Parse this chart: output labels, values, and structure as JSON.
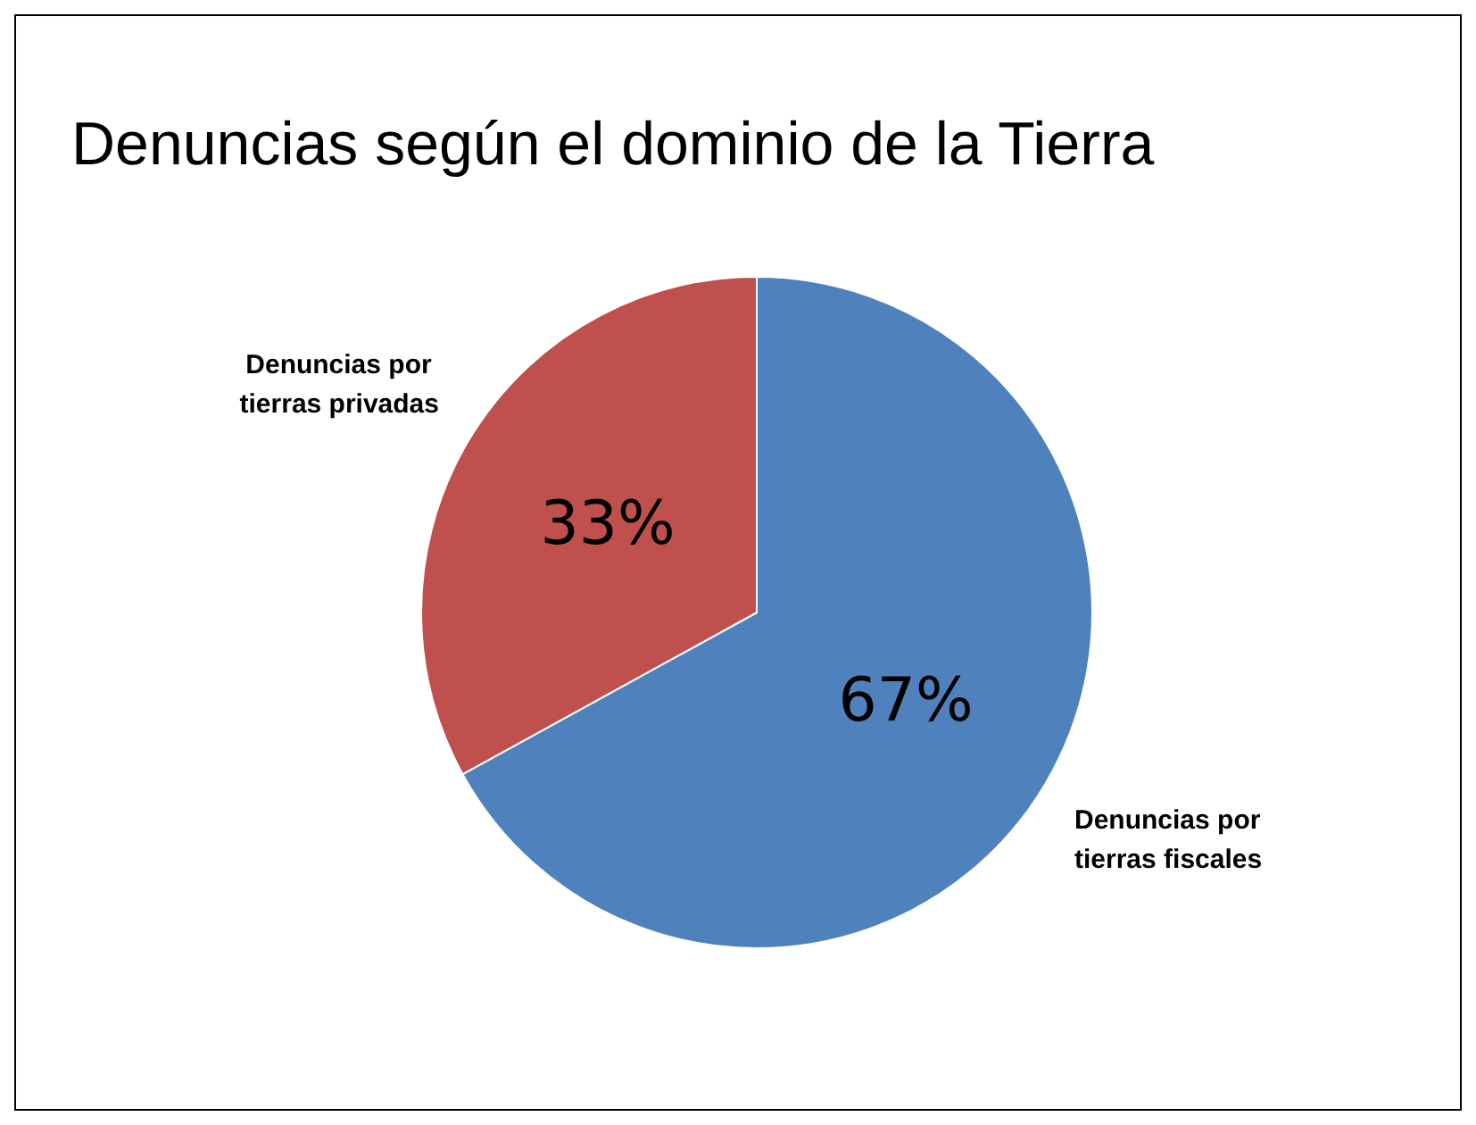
{
  "chart_data": {
    "type": "pie",
    "title": "Denuncias según el dominio de la Tierra",
    "categories": [
      "Denuncias por tierras fiscales",
      "Denuncias por tierras privadas"
    ],
    "values": [
      67,
      33
    ],
    "colors": [
      "#4f81bd",
      "#c0504d"
    ],
    "value_labels": [
      "67%",
      "33%"
    ],
    "legend": false
  }
}
